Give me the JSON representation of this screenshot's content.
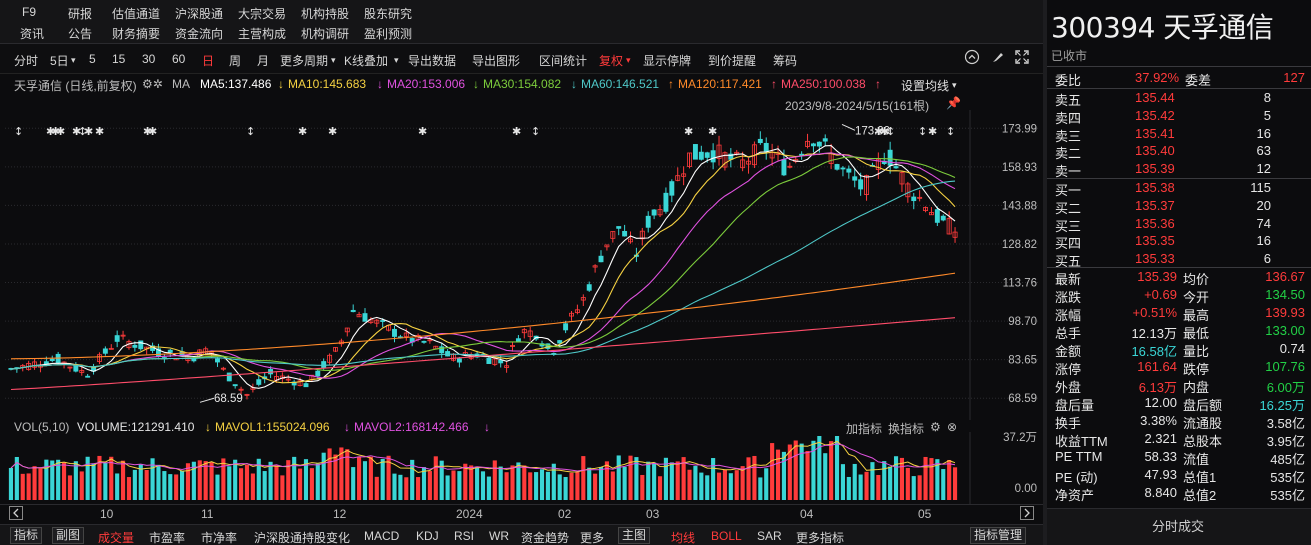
{
  "nav_top": {
    "row1": [
      "F9",
      "研报",
      "估值通道",
      "沪深股通",
      "大宗交易",
      "机构持股",
      "股东研究"
    ],
    "row2": [
      "资讯",
      "公告",
      "财务摘要",
      "资金流向",
      "主营构成",
      "机构调研",
      "盈利预测"
    ]
  },
  "toolbar": {
    "items": [
      "分时",
      "5日",
      "5",
      "15",
      "30",
      "60",
      "日",
      "周",
      "月",
      "更多周期",
      "K线叠加",
      "导出数据",
      "导出图形",
      "区间统计",
      "复权",
      "显示停牌",
      "到价提醒",
      "筹码"
    ],
    "active": "日"
  },
  "ma_legend": {
    "label": "天孚通信 (日线,前复权)",
    "ma_tag": "MA",
    "ma5": "MA5:137.486",
    "ma10": "MA10:145.683",
    "ma20": "MA20:153.006",
    "ma30": "MA30:154.082",
    "ma60": "MA60:146.521",
    "ma120": "MA120:117.421",
    "ma250": "MA250:100.038",
    "settings": "设置均线"
  },
  "range_label": "2023/9/8-2024/5/15(161根)",
  "colors": {
    "up": "#ff3b3b",
    "down": "#3ad6d6",
    "ma5": "#ffffff",
    "ma10": "#f5d142",
    "ma20": "#e052e0",
    "ma30": "#7ccc3c",
    "ma60": "#4fc8c8",
    "ma120": "#ff8a2a",
    "ma250": "#ff4d6a"
  },
  "chart_data": {
    "type": "candlestick",
    "price_axis": [
      "173.99",
      "158.93",
      "143.88",
      "128.82",
      "113.76",
      "98.70",
      "83.65",
      "68.59"
    ],
    "high_label": "173.99",
    "low_label": "68.59",
    "x_labels": [
      "10",
      "11",
      "12",
      "2024",
      "02",
      "03",
      "04",
      "05"
    ],
    "volume_axis": [
      "37.2万",
      "0.00"
    ],
    "ma120_last": 117.421,
    "ma250_last": 100.038
  },
  "volume_legend": {
    "label": "VOL(5,10)",
    "volume": "VOLUME:121291.410",
    "mavol1": "MAVOL1:155024.096",
    "mavol2": "MAVOL2:168142.466",
    "add_indicator": "加指标",
    "switch_indicator": "换指标"
  },
  "bottom_tabs": {
    "items": [
      "指标",
      "副图",
      "成交量",
      "市盈率",
      "市净率",
      "沪深股通持股变化",
      "MACD",
      "KDJ",
      "RSI",
      "WR",
      "资金趋势",
      "更多",
      "主图",
      "均线",
      "BOLL",
      "SAR",
      "更多指标"
    ],
    "manage": "指标管理"
  },
  "quote": {
    "code_name": "300394 天孚通信",
    "status": "已收市",
    "webi_label": "委比",
    "webi": "37.92%",
    "weicha_label": "委差",
    "weicha": "127",
    "asks": [
      {
        "label": "卖五",
        "price": "135.44",
        "vol": "8"
      },
      {
        "label": "卖四",
        "price": "135.42",
        "vol": "5"
      },
      {
        "label": "卖三",
        "price": "135.41",
        "vol": "16"
      },
      {
        "label": "卖二",
        "price": "135.40",
        "vol": "63"
      },
      {
        "label": "卖一",
        "price": "135.39",
        "vol": "12"
      }
    ],
    "bids": [
      {
        "label": "买一",
        "price": "135.38",
        "vol": "115"
      },
      {
        "label": "买二",
        "price": "135.37",
        "vol": "20"
      },
      {
        "label": "买三",
        "price": "135.36",
        "vol": "74"
      },
      {
        "label": "买四",
        "price": "135.35",
        "vol": "16"
      },
      {
        "label": "买五",
        "price": "135.33",
        "vol": "6"
      }
    ],
    "stats": [
      {
        "l1": "最新",
        "v1": "135.39",
        "c1": "red",
        "l2": "均价",
        "v2": "136.67",
        "c2": "red"
      },
      {
        "l1": "涨跌",
        "v1": "+0.69",
        "c1": "red",
        "l2": "今开",
        "v2": "134.50",
        "c2": "green"
      },
      {
        "l1": "涨幅",
        "v1": "+0.51%",
        "c1": "red",
        "l2": "最高",
        "v2": "139.93",
        "c2": "red"
      },
      {
        "l1": "总手",
        "v1": "12.13万",
        "c1": "white",
        "l2": "最低",
        "v2": "133.00",
        "c2": "green"
      },
      {
        "l1": "金额",
        "v1": "16.58亿",
        "c1": "cyan",
        "l2": "量比",
        "v2": "0.74",
        "c2": "white"
      },
      {
        "l1": "涨停",
        "v1": "161.64",
        "c1": "red",
        "l2": "跌停",
        "v2": "107.76",
        "c2": "green"
      },
      {
        "l1": "外盘",
        "v1": "6.13万",
        "c1": "red",
        "l2": "内盘",
        "v2": "6.00万",
        "c2": "green"
      },
      {
        "l1": "盘后量",
        "v1": "12.00",
        "c1": "white",
        "l2": "盘后额",
        "v2": "16.25万",
        "c2": "cyan"
      },
      {
        "l1": "换手",
        "v1": "3.38%",
        "c1": "white",
        "l2": "流通股",
        "v2": "3.58亿",
        "c2": "white"
      },
      {
        "l1": "收益TTM",
        "v1": "2.321",
        "c1": "white",
        "l2": "总股本",
        "v2": "3.95亿",
        "c2": "white"
      },
      {
        "l1": "PE TTM",
        "v1": "58.33",
        "c1": "white",
        "l2": "流值",
        "v2": "485亿",
        "c2": "white"
      },
      {
        "l1": "PE (动)",
        "v1": "47.93",
        "c1": "white",
        "l2": "总值1",
        "v2": "535亿",
        "c2": "white"
      },
      {
        "l1": "净资产",
        "v1": "8.840",
        "c1": "white",
        "l2": "总值2",
        "v2": "535亿",
        "c2": "white"
      }
    ],
    "fenshi": "分时成交"
  }
}
